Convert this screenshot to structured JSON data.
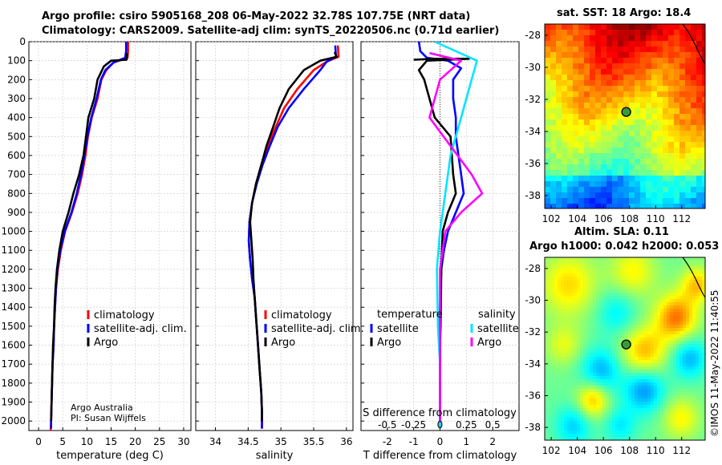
{
  "header": {
    "line1": "Argo profile: csiro 5905168_208 06-May-2022 32.78S 107.75E (NRT data)",
    "line2": "Climatology: CARS2009. Satellite-adj clim: synTS_20220506.nc (0.71d earlier)"
  },
  "stamp": "©IMOS 11-May-2022 11:40:55",
  "depth_ticks": [
    0,
    100,
    200,
    300,
    400,
    500,
    600,
    700,
    800,
    900,
    1000,
    1100,
    1200,
    1300,
    1400,
    1500,
    1600,
    1700,
    1800,
    1900,
    2000
  ],
  "colors": {
    "climatology": "#ff0000",
    "satellite": "#0000ff",
    "argo": "#000000",
    "sat_salinity": "#00e5ff",
    "argo_salinity": "#ff00ff"
  },
  "chart_data": [
    {
      "type": "line",
      "title": "",
      "xlabel": "temperature (deg C)",
      "ylabel": "",
      "xlim": [
        -2,
        31.5
      ],
      "ylim": [
        2050,
        0
      ],
      "xticks": [
        0,
        5,
        10,
        15,
        20,
        25,
        30
      ],
      "legend": {
        "position": "center-right",
        "entries": [
          "climatology",
          "satellite-adj. clim.",
          "Argo"
        ]
      },
      "notes": [
        "Argo Australia",
        "PI: Susan Wijffels"
      ],
      "series": [
        {
          "name": "climatology",
          "color": "#ff0000",
          "points": [
            [
              18.5,
              0
            ],
            [
              18.5,
              50
            ],
            [
              18.4,
              85
            ],
            [
              15.5,
              110
            ],
            [
              14.0,
              150
            ],
            [
              13.0,
              200
            ],
            [
              12.2,
              300
            ],
            [
              11.0,
              400
            ],
            [
              10.2,
              500
            ],
            [
              9.7,
              600
            ],
            [
              9.0,
              700
            ],
            [
              8.1,
              800
            ],
            [
              6.9,
              900
            ],
            [
              5.5,
              1000
            ],
            [
              4.6,
              1100
            ],
            [
              4.0,
              1200
            ],
            [
              3.6,
              1300
            ],
            [
              3.4,
              1400
            ],
            [
              3.2,
              1500
            ],
            [
              3.1,
              1600
            ],
            [
              2.9,
              1700
            ],
            [
              2.8,
              1800
            ],
            [
              2.7,
              1900
            ],
            [
              2.6,
              2000
            ],
            [
              2.5,
              2050
            ]
          ]
        },
        {
          "name": "satellite-adj. clim.",
          "color": "#0000ff",
          "points": [
            [
              18.1,
              0
            ],
            [
              18.1,
              50
            ],
            [
              17.9,
              85
            ],
            [
              15.5,
              110
            ],
            [
              13.8,
              150
            ],
            [
              12.9,
              200
            ],
            [
              12.0,
              300
            ],
            [
              10.9,
              400
            ],
            [
              10.1,
              500
            ],
            [
              9.5,
              600
            ],
            [
              8.8,
              700
            ],
            [
              7.9,
              800
            ],
            [
              6.8,
              900
            ],
            [
              5.4,
              1000
            ],
            [
              4.5,
              1100
            ],
            [
              3.9,
              1200
            ],
            [
              3.6,
              1300
            ],
            [
              3.4,
              1400
            ],
            [
              3.2,
              1500
            ],
            [
              3.1,
              1600
            ],
            [
              2.9,
              1700
            ],
            [
              2.8,
              1800
            ],
            [
              2.7,
              1900
            ],
            [
              2.6,
              2000
            ],
            [
              2.6,
              2040
            ]
          ]
        },
        {
          "name": "Argo",
          "color": "#000000",
          "points": [
            [
              18.3,
              60
            ],
            [
              18.2,
              95
            ],
            [
              15.0,
              100
            ],
            [
              13.5,
              130
            ],
            [
              12.2,
              200
            ],
            [
              11.5,
              300
            ],
            [
              10.3,
              400
            ],
            [
              9.8,
              500
            ],
            [
              9.3,
              600
            ],
            [
              8.4,
              700
            ],
            [
              7.2,
              800
            ],
            [
              6.2,
              900
            ],
            [
              5.0,
              1000
            ],
            [
              4.3,
              1100
            ],
            [
              3.8,
              1200
            ],
            [
              3.5,
              1300
            ],
            [
              3.3,
              1400
            ],
            [
              3.2,
              1500
            ],
            [
              3.0,
              1600
            ],
            [
              2.9,
              1700
            ],
            [
              2.8,
              1800
            ],
            [
              2.7,
              1900
            ],
            [
              2.6,
              2000
            ]
          ]
        }
      ]
    },
    {
      "type": "line",
      "xlabel": "salinity",
      "xlim": [
        33.7,
        36.1
      ],
      "ylim": [
        2050,
        0
      ],
      "xticks": [
        34,
        34.5,
        35,
        35.5,
        36
      ],
      "legend": {
        "position": "center-right",
        "entries": [
          "climatology",
          "satellite-adj. clim.",
          "Argo"
        ]
      },
      "series": [
        {
          "name": "climatology",
          "color": "#ff0000",
          "points": [
            [
              35.87,
              20
            ],
            [
              35.88,
              80
            ],
            [
              35.7,
              105
            ],
            [
              35.5,
              150
            ],
            [
              35.25,
              250
            ],
            [
              35.05,
              350
            ],
            [
              34.92,
              450
            ],
            [
              34.8,
              550
            ],
            [
              34.7,
              650
            ],
            [
              34.62,
              750
            ],
            [
              34.56,
              850
            ],
            [
              34.52,
              950
            ],
            [
              34.51,
              1050
            ],
            [
              34.53,
              1150
            ],
            [
              34.56,
              1250
            ],
            [
              34.6,
              1350
            ],
            [
              34.62,
              1450
            ],
            [
              34.64,
              1550
            ],
            [
              34.66,
              1650
            ],
            [
              34.68,
              1750
            ],
            [
              34.7,
              1850
            ],
            [
              34.71,
              1950
            ],
            [
              34.71,
              2040
            ]
          ]
        },
        {
          "name": "satellite-adj. clim.",
          "color": "#0000ff",
          "points": [
            [
              35.83,
              20
            ],
            [
              35.84,
              80
            ],
            [
              35.7,
              105
            ],
            [
              35.6,
              150
            ],
            [
              35.35,
              250
            ],
            [
              35.12,
              350
            ],
            [
              34.95,
              450
            ],
            [
              34.83,
              550
            ],
            [
              34.72,
              650
            ],
            [
              34.63,
              750
            ],
            [
              34.56,
              850
            ],
            [
              34.52,
              950
            ],
            [
              34.51,
              1050
            ],
            [
              34.53,
              1150
            ],
            [
              34.56,
              1250
            ],
            [
              34.6,
              1350
            ],
            [
              34.62,
              1450
            ],
            [
              34.64,
              1550
            ],
            [
              34.66,
              1650
            ],
            [
              34.68,
              1750
            ],
            [
              34.7,
              1850
            ],
            [
              34.71,
              1950
            ],
            [
              34.71,
              2040
            ]
          ]
        },
        {
          "name": "Argo",
          "color": "#000000",
          "points": [
            [
              35.82,
              55
            ],
            [
              35.85,
              80
            ],
            [
              35.6,
              100
            ],
            [
              35.35,
              150
            ],
            [
              35.12,
              250
            ],
            [
              34.98,
              350
            ],
            [
              34.88,
              450
            ],
            [
              34.78,
              550
            ],
            [
              34.7,
              650
            ],
            [
              34.62,
              750
            ],
            [
              34.56,
              850
            ],
            [
              34.53,
              950
            ],
            [
              34.55,
              1050
            ],
            [
              34.57,
              1150
            ],
            [
              34.58,
              1250
            ],
            [
              34.6,
              1350
            ],
            [
              34.62,
              1450
            ],
            [
              34.64,
              1550
            ],
            [
              34.66,
              1650
            ],
            [
              34.68,
              1750
            ],
            [
              34.7,
              1850
            ],
            [
              34.71,
              1950
            ],
            [
              34.71,
              2000
            ]
          ]
        }
      ]
    },
    {
      "type": "line",
      "xlabel": "T difference from climatology",
      "secondary_xlabel": "S difference from climatology",
      "xlim": [
        -3,
        3
      ],
      "ylim": [
        2050,
        0
      ],
      "xticks": [
        -2,
        -1,
        0,
        1,
        2
      ],
      "secondary_xticks": [
        "-0.5",
        "-0.25",
        "0",
        "0.25",
        "0.5"
      ],
      "legend_left": {
        "title": "temperature",
        "entries": [
          "satellite",
          "Argo"
        ]
      },
      "legend_right": {
        "title": "salinity",
        "entries": [
          "satellite",
          "Argo"
        ]
      },
      "series": [
        {
          "name": "temperature satellite",
          "color": "#0000ff",
          "points": [
            [
              -0.8,
              0
            ],
            [
              -0.75,
              50
            ],
            [
              -0.5,
              85
            ],
            [
              0.3,
              100
            ],
            [
              0.8,
              140
            ],
            [
              0.5,
              200
            ],
            [
              0.5,
              300
            ],
            [
              0.6,
              400
            ],
            [
              0.6,
              500
            ],
            [
              0.7,
              600
            ],
            [
              0.8,
              700
            ],
            [
              0.9,
              800
            ],
            [
              0.6,
              900
            ],
            [
              0.3,
              1000
            ],
            [
              0.15,
              1100
            ],
            [
              0.05,
              1200
            ],
            [
              0,
              1400
            ],
            [
              0,
              1700
            ],
            [
              0,
              2040
            ]
          ]
        },
        {
          "name": "temperature Argo",
          "color": "#000000",
          "points": [
            [
              -1.0,
              95
            ],
            [
              -0.2,
              90
            ],
            [
              1.1,
              90
            ],
            [
              -0.5,
              100
            ],
            [
              -0.8,
              150
            ],
            [
              -0.6,
              200
            ],
            [
              -0.2,
              400
            ],
            [
              0.4,
              500
            ],
            [
              0.5,
              700
            ],
            [
              0.6,
              800
            ],
            [
              0.3,
              900
            ],
            [
              0.1,
              1000
            ],
            [
              0.05,
              1200
            ],
            [
              0.02,
              1500
            ],
            [
              0,
              1600
            ],
            [
              0,
              2000
            ]
          ]
        },
        {
          "name": "salinity satellite",
          "color": "#00e5ff",
          "points": [
            [
              -0.05,
              0
            ],
            [
              0.35,
              100
            ],
            [
              0.3,
              200
            ],
            [
              0.2,
              400
            ],
            [
              0.1,
              600
            ],
            [
              0.05,
              800
            ],
            [
              0,
              1000
            ],
            [
              -0.03,
              1200
            ],
            [
              -0.02,
              1500
            ],
            [
              0,
              1700
            ],
            [
              0,
              2040
            ]
          ]
        },
        {
          "name": "salinity Argo",
          "color": "#ff00ff",
          "points": [
            [
              -0.1,
              60
            ],
            [
              0.2,
              100
            ],
            [
              0,
              200
            ],
            [
              -0.1,
              400
            ],
            [
              0.3,
              700
            ],
            [
              0.4,
              800
            ],
            [
              0.2,
              900
            ],
            [
              0.05,
              1000
            ],
            [
              0,
              1200
            ],
            [
              0,
              2000
            ]
          ]
        }
      ]
    },
    {
      "type": "heatmap",
      "title": "sat. SST: 18 Argo: 18.4",
      "xticks": [
        102,
        104,
        106,
        108,
        110,
        112
      ],
      "yticks": [
        -28,
        -30,
        -32,
        -34,
        -36,
        -38
      ],
      "xlim": [
        101.5,
        113.8
      ],
      "ylim": [
        -38.8,
        -27.3
      ],
      "marker": {
        "lon": 107.75,
        "lat": -32.78
      }
    },
    {
      "type": "heatmap",
      "title": "Altim. SLA: 0.11",
      "subtitle": "Argo h1000: 0.042 h2000: 0.053",
      "xticks": [
        102,
        104,
        106,
        108,
        110,
        112
      ],
      "yticks": [
        -28,
        -30,
        -32,
        -34,
        -36,
        -38
      ],
      "xlim": [
        101.5,
        113.8
      ],
      "ylim": [
        -38.8,
        -27.3
      ],
      "marker": {
        "lon": 107.75,
        "lat": -32.78
      }
    }
  ]
}
